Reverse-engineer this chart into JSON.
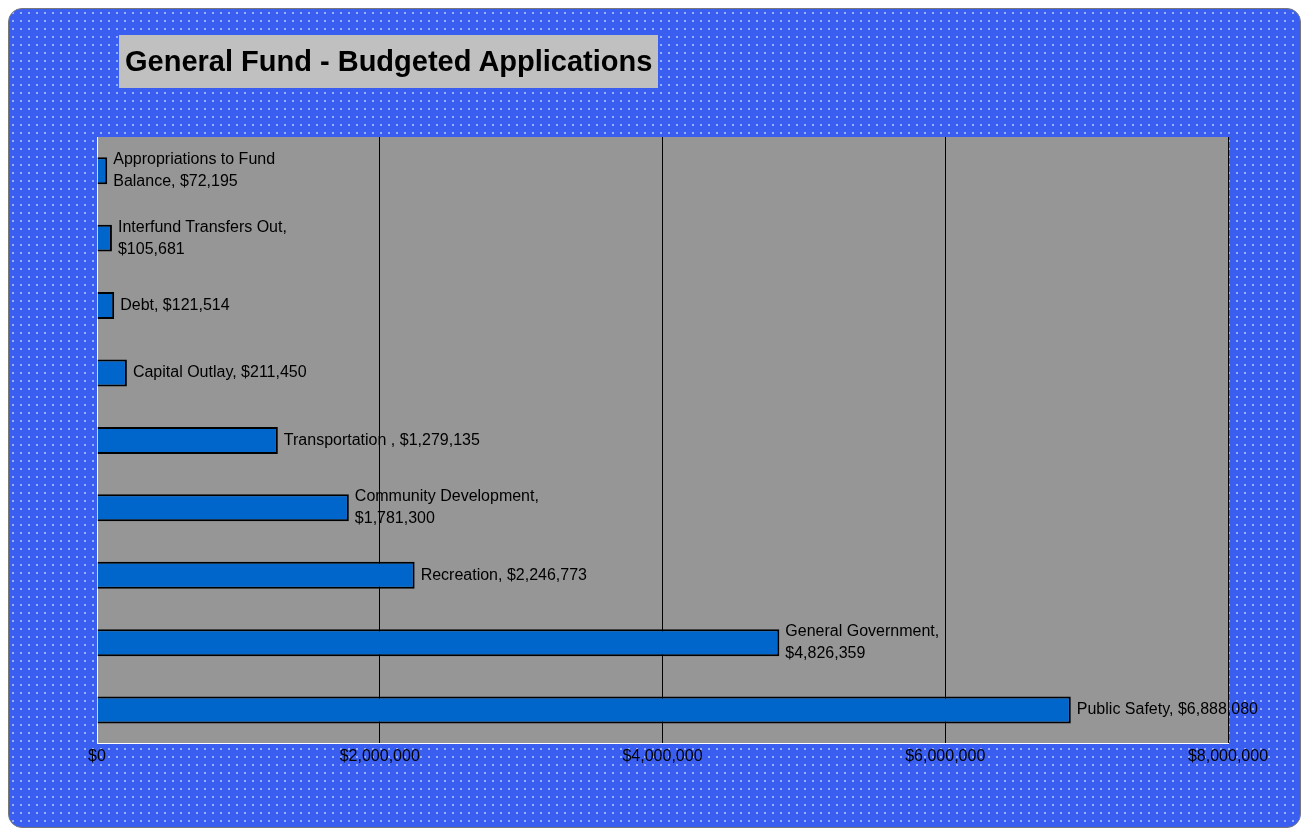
{
  "chart_data": {
    "type": "bar",
    "orientation": "horizontal",
    "title": "General Fund - Budgeted Applications",
    "categories": [
      null,
      null,
      null,
      null,
      null,
      null,
      null,
      null,
      null
    ],
    "values": [
      72195,
      105681,
      121514,
      211450,
      1279135,
      1781300,
      2246773,
      4826359,
      6888080
    ],
    "value_labels": [
      "Appropriations to Fund Balance, $72,195",
      "Interfund Transfers Out, $105,681",
      "Debt, $121,514",
      "Capital Outlay, $211,450",
      "Transportation , $1,279,135",
      "Community Development, $1,781,300",
      "Recreation, $2,246,773",
      "General Government, $4,826,359",
      "Public Safety, $6,888,080"
    ],
    "color": "#0066cc",
    "xlim": [
      0,
      8000000
    ],
    "xticks": [
      {
        "value": 0,
        "label": "$0"
      },
      {
        "value": 2000000,
        "label": "$2,000,000"
      },
      {
        "value": 4000000,
        "label": "$4,000,000"
      },
      {
        "value": 6000000,
        "label": "$6,000,000"
      },
      {
        "value": 8000000,
        "label": "$8,000,000"
      }
    ],
    "grid": "x",
    "tick_labels": "x",
    "legend": false
  }
}
